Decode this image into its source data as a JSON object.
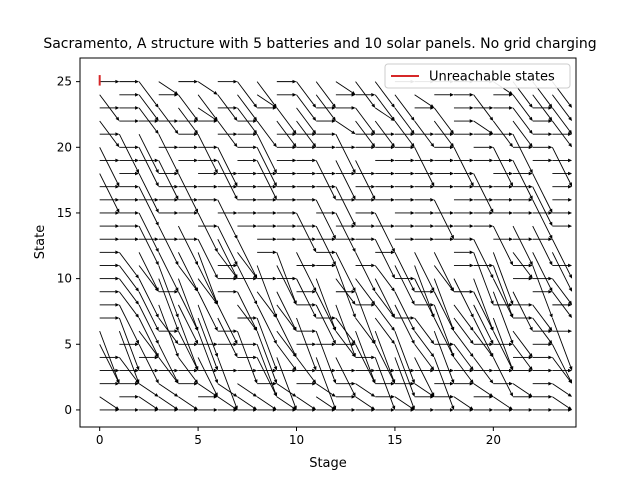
{
  "chart_data": {
    "type": "quiver",
    "title": "Sacramento, A structure with 5 batteries and 10 solar panels. No grid charging",
    "xlabel": "Stage",
    "ylabel": "State",
    "xlim": [
      -1,
      24.2
    ],
    "ylim": [
      -1.3,
      26.8
    ],
    "x_ticks": [
      0,
      5,
      10,
      15,
      20
    ],
    "y_ticks": [
      0,
      5,
      10,
      15,
      20,
      25
    ],
    "grid": false,
    "legend": {
      "position": "top-right",
      "entries": [
        {
          "label": "Unreachable states",
          "color": "#d62728"
        }
      ]
    },
    "stages": [
      0,
      24
    ],
    "states": [
      0,
      25
    ],
    "unreachable_states": [
      {
        "stage": 0,
        "state_from": 24.7,
        "state_to": 25.5
      }
    ],
    "arrow_color": "#000000"
  }
}
